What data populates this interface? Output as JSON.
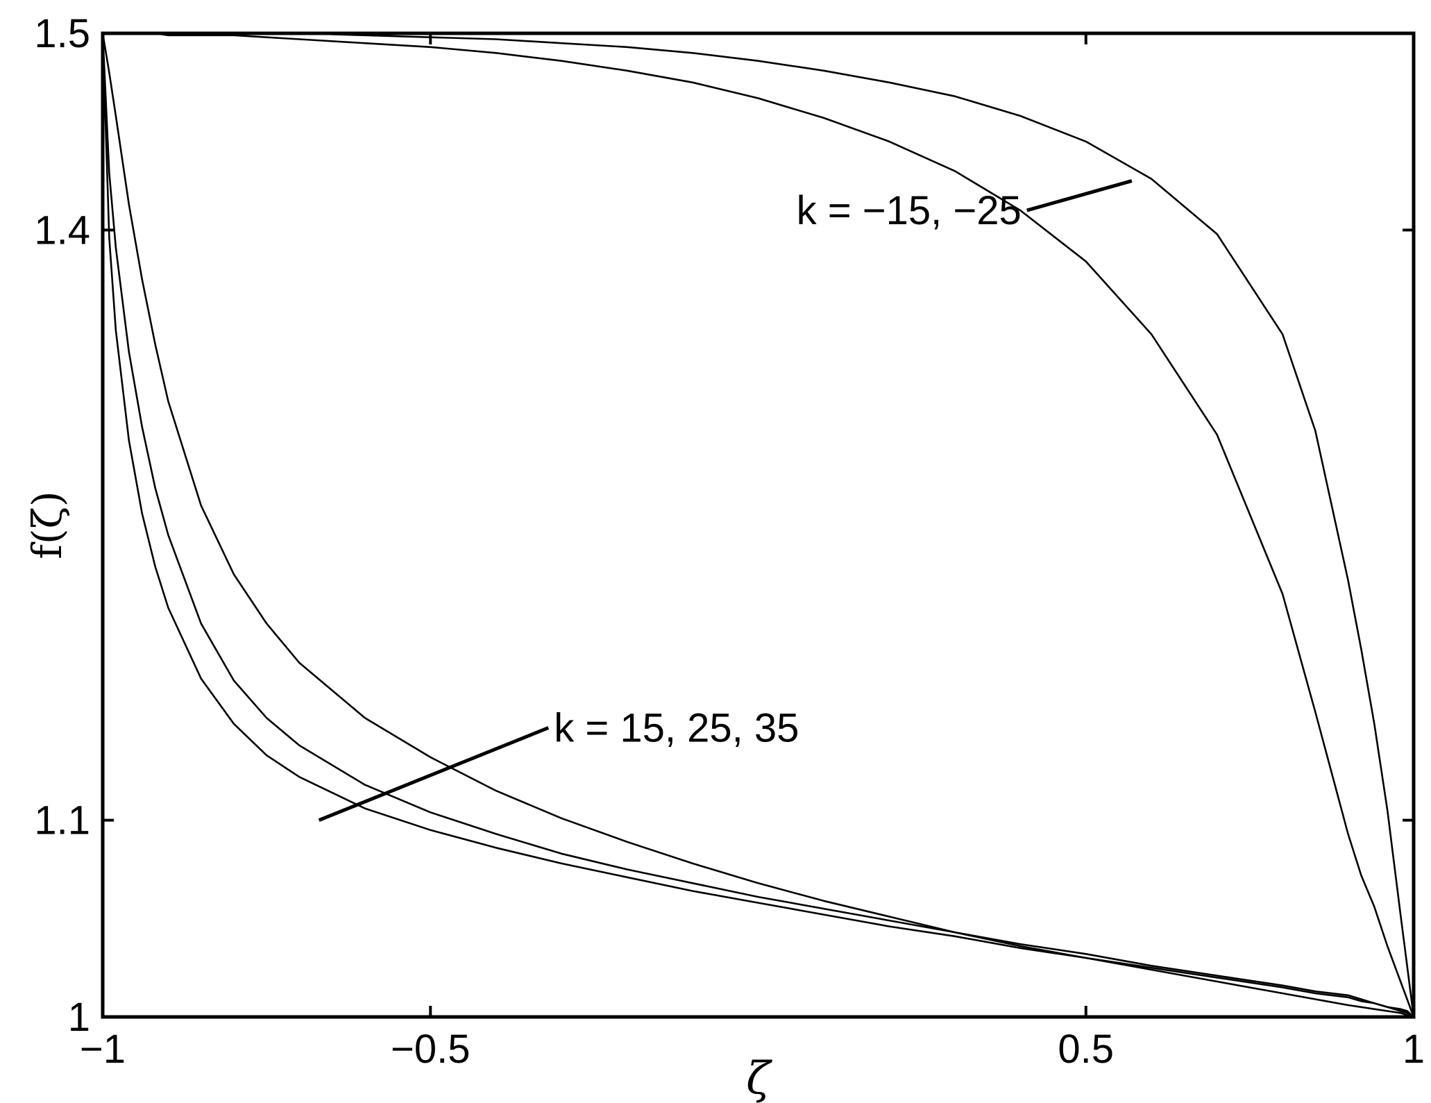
{
  "chart_data": {
    "type": "line",
    "title": "",
    "xlabel": "ζ",
    "ylabel": "f(ζ)",
    "xlim": [
      -1,
      1
    ],
    "ylim": [
      1,
      1.5
    ],
    "x_ticks": [
      -1,
      -0.5,
      0.5,
      1
    ],
    "x_tick_labels": [
      "−1",
      "−0.5",
      "0.5",
      "1"
    ],
    "y_ticks": [
      1,
      1.1,
      1.4,
      1.5
    ],
    "y_tick_labels": [
      "1",
      "1.1",
      "1.4",
      "1.5"
    ],
    "grid": false,
    "line_color": "#000000",
    "x": [
      -1.0,
      -0.99,
      -0.98,
      -0.96,
      -0.94,
      -0.92,
      -0.9,
      -0.85,
      -0.8,
      -0.75,
      -0.7,
      -0.6,
      -0.5,
      -0.4,
      -0.3,
      -0.2,
      -0.1,
      0.0,
      0.1,
      0.2,
      0.3,
      0.4,
      0.5,
      0.6,
      0.7,
      0.8,
      0.85,
      0.9,
      0.92,
      0.94,
      0.96,
      0.98,
      0.99,
      1.0
    ],
    "series": [
      {
        "values": [
          1.5,
          1.396,
          1.349,
          1.293,
          1.256,
          1.229,
          1.208,
          1.172,
          1.149,
          1.133,
          1.122,
          1.106,
          1.095,
          1.086,
          1.078,
          1.071,
          1.064,
          1.058,
          1.052,
          1.046,
          1.041,
          1.035,
          1.03,
          1.025,
          1.02,
          1.015,
          1.012,
          1.01,
          1.008,
          1.007,
          1.005,
          1.003,
          1.002,
          1.0
        ]
      },
      {
        "values": [
          1.5,
          1.429,
          1.391,
          1.338,
          1.3,
          1.269,
          1.245,
          1.2,
          1.171,
          1.152,
          1.138,
          1.118,
          1.104,
          1.093,
          1.083,
          1.075,
          1.068,
          1.061,
          1.055,
          1.049,
          1.043,
          1.037,
          1.032,
          1.026,
          1.021,
          1.016,
          1.013,
          1.011,
          1.009,
          1.007,
          1.005,
          1.004,
          1.003,
          1.0
        ]
      },
      {
        "values": [
          1.5,
          1.48,
          1.458,
          1.413,
          1.375,
          1.342,
          1.313,
          1.26,
          1.225,
          1.2,
          1.18,
          1.152,
          1.132,
          1.115,
          1.101,
          1.089,
          1.078,
          1.068,
          1.059,
          1.051,
          1.043,
          1.036,
          1.03,
          1.024,
          1.018,
          1.012,
          1.009,
          1.006,
          1.005,
          1.004,
          1.003,
          1.002,
          1.001,
          1.0
        ]
      },
      {
        "values": [
          1.5,
          1.5,
          1.5,
          1.5,
          1.5,
          1.5,
          1.499,
          1.499,
          1.499,
          1.498,
          1.497,
          1.495,
          1.493,
          1.49,
          1.486,
          1.481,
          1.475,
          1.467,
          1.457,
          1.445,
          1.43,
          1.41,
          1.384,
          1.347,
          1.296,
          1.215,
          1.155,
          1.093,
          1.072,
          1.056,
          1.036,
          1.018,
          1.009,
          1.0
        ]
      },
      {
        "values": [
          1.5,
          1.5,
          1.5,
          1.5,
          1.5,
          1.5,
          1.5,
          1.5,
          1.5,
          1.5,
          1.5,
          1.499,
          1.498,
          1.497,
          1.495,
          1.493,
          1.49,
          1.486,
          1.481,
          1.475,
          1.468,
          1.458,
          1.445,
          1.426,
          1.398,
          1.347,
          1.298,
          1.222,
          1.187,
          1.149,
          1.105,
          1.052,
          1.026,
          1.0
        ]
      }
    ],
    "annotations": [
      {
        "text": "k = −15, −25",
        "arrow_from": [
          0.41,
          1.41
        ],
        "arrow_to": [
          0.57,
          1.425
        ]
      },
      {
        "text": "k = 15, 25, 35",
        "arrow_from": [
          -0.32,
          1.147
        ],
        "arrow_to": [
          -0.67,
          1.1
        ]
      }
    ]
  }
}
